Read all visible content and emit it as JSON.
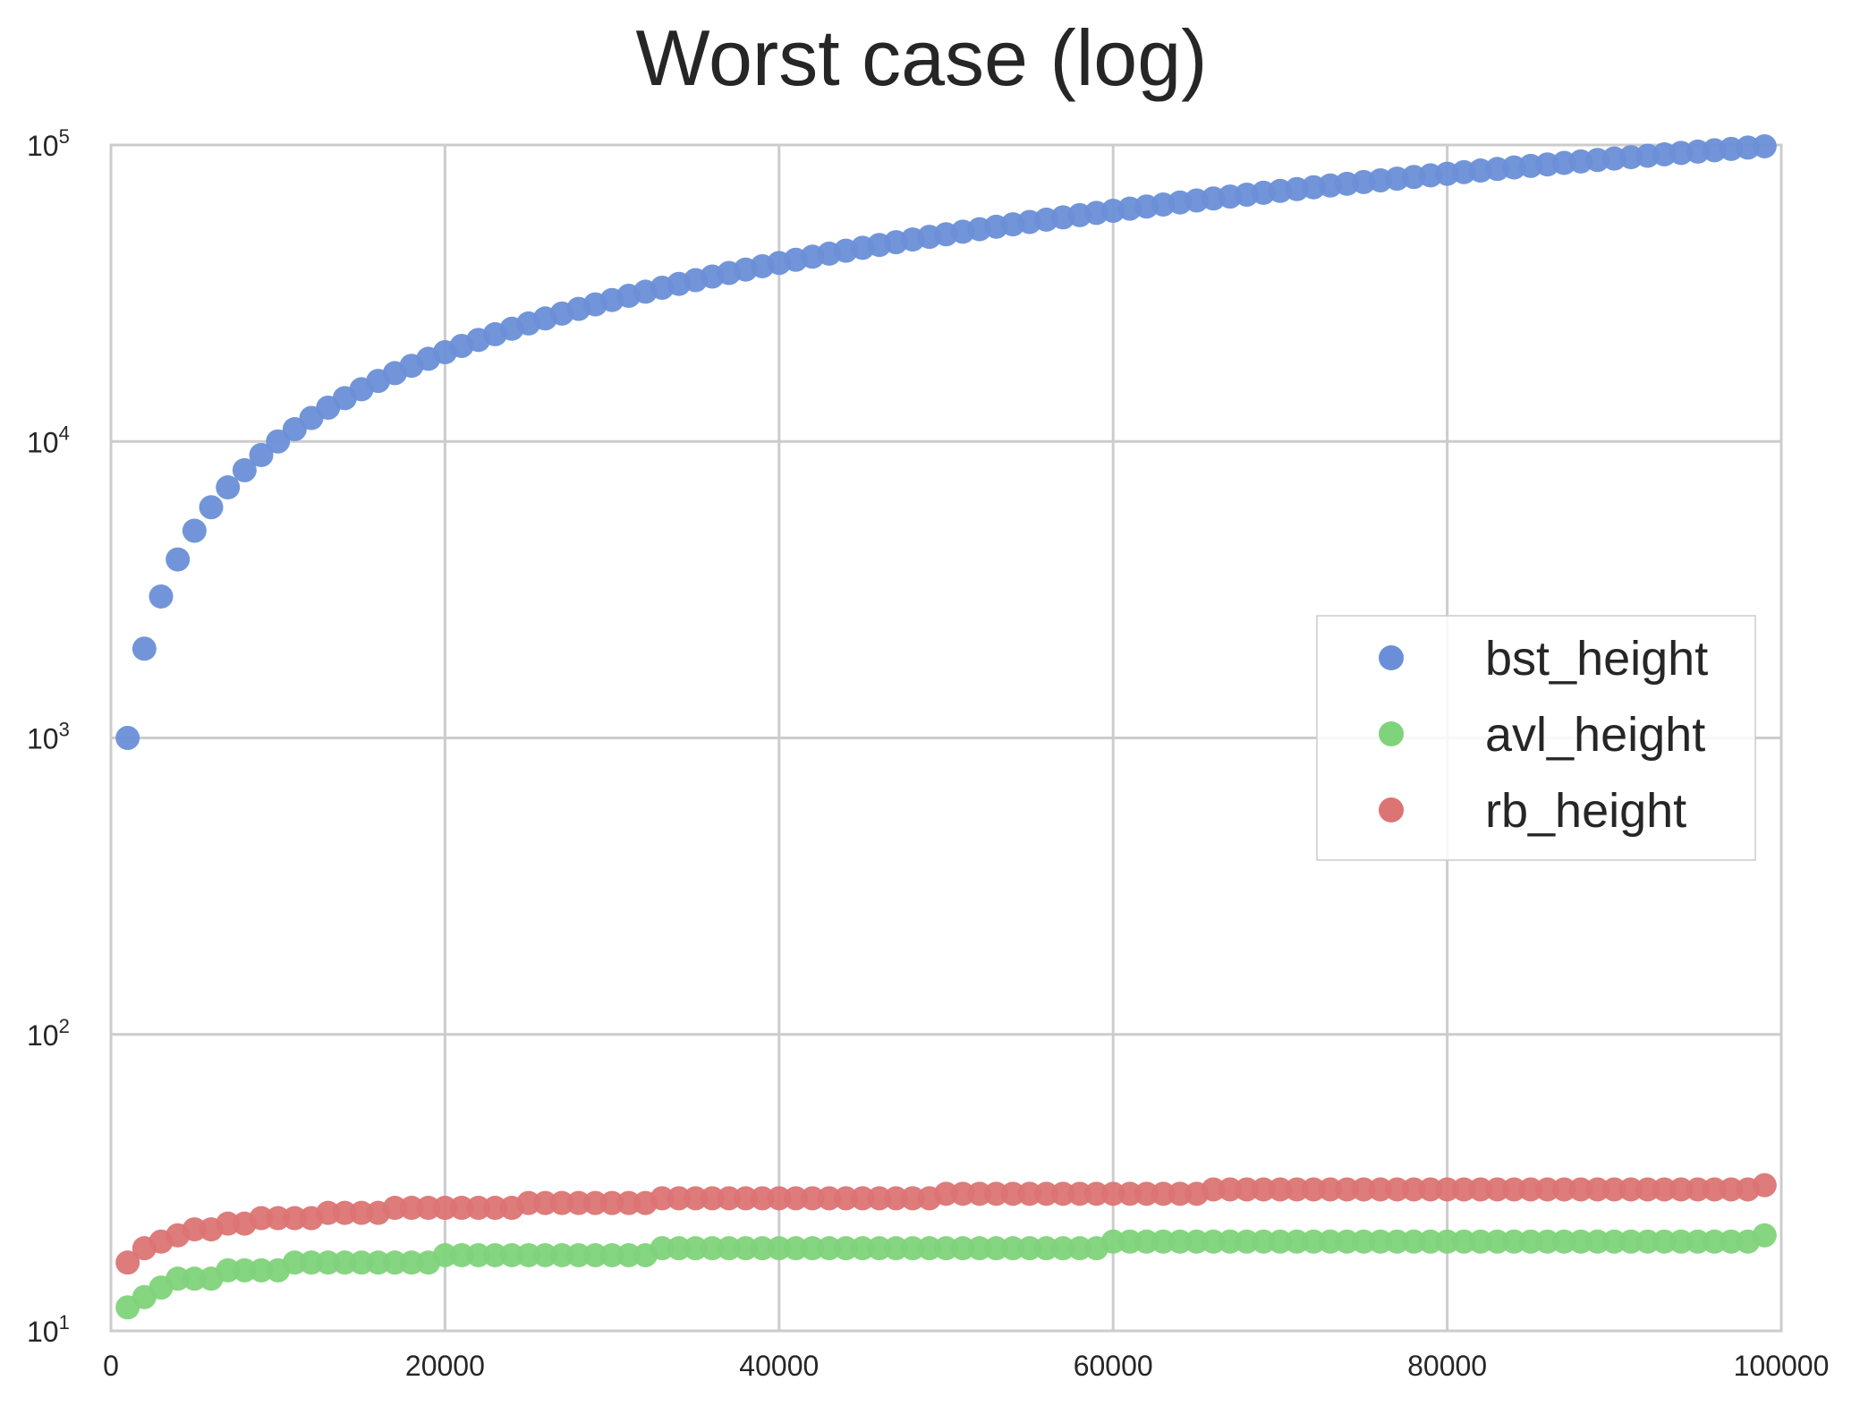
{
  "chart_data": {
    "type": "scatter",
    "title": "Worst case (log)",
    "xlabel": "",
    "ylabel": "",
    "x_scale": "linear",
    "y_scale": "log",
    "xlim": [
      0,
      100000
    ],
    "ylim": [
      10,
      100000
    ],
    "x_ticks": [
      "0",
      "20000",
      "40000",
      "60000",
      "80000",
      "100000"
    ],
    "y_ticks": [
      {
        "base": "10",
        "exp": "1"
      },
      {
        "base": "10",
        "exp": "2"
      },
      {
        "base": "10",
        "exp": "3"
      },
      {
        "base": "10",
        "exp": "4"
      },
      {
        "base": "10",
        "exp": "5"
      }
    ],
    "grid": true,
    "legend_position": "center-right",
    "x": [
      1000,
      2000,
      3000,
      4000,
      5000,
      6000,
      7000,
      8000,
      9000,
      10000,
      11000,
      12000,
      13000,
      14000,
      15000,
      16000,
      17000,
      18000,
      19000,
      20000,
      21000,
      22000,
      23000,
      24000,
      25000,
      26000,
      27000,
      28000,
      29000,
      30000,
      31000,
      32000,
      33000,
      34000,
      35000,
      36000,
      37000,
      38000,
      39000,
      40000,
      41000,
      42000,
      43000,
      44000,
      45000,
      46000,
      47000,
      48000,
      49000,
      50000,
      51000,
      52000,
      53000,
      54000,
      55000,
      56000,
      57000,
      58000,
      59000,
      60000,
      61000,
      62000,
      63000,
      64000,
      65000,
      66000,
      67000,
      68000,
      69000,
      70000,
      71000,
      72000,
      73000,
      74000,
      75000,
      76000,
      77000,
      78000,
      79000,
      80000,
      81000,
      82000,
      83000,
      84000,
      85000,
      86000,
      87000,
      88000,
      89000,
      90000,
      91000,
      92000,
      93000,
      94000,
      95000,
      96000,
      97000,
      98000,
      99000
    ],
    "series": [
      {
        "name": "bst_height",
        "color": "#6a8fd8",
        "values": [
          1000,
          2000,
          3000,
          4000,
          5000,
          6000,
          7000,
          8000,
          9000,
          10000,
          11000,
          12000,
          13000,
          14000,
          15000,
          16000,
          17000,
          18000,
          19000,
          20000,
          21000,
          22000,
          23000,
          24000,
          25000,
          26000,
          27000,
          28000,
          29000,
          30000,
          31000,
          32000,
          33000,
          34000,
          35000,
          36000,
          37000,
          38000,
          39000,
          40000,
          41000,
          42000,
          43000,
          44000,
          45000,
          46000,
          47000,
          48000,
          49000,
          50000,
          51000,
          52000,
          53000,
          54000,
          55000,
          56000,
          57000,
          58000,
          59000,
          60000,
          61000,
          62000,
          63000,
          64000,
          65000,
          66000,
          67000,
          68000,
          69000,
          70000,
          71000,
          72000,
          73000,
          74000,
          75000,
          76000,
          77000,
          78000,
          79000,
          80000,
          81000,
          82000,
          83000,
          84000,
          85000,
          86000,
          87000,
          88000,
          89000,
          90000,
          91000,
          92000,
          93000,
          94000,
          95000,
          96000,
          97000,
          98000,
          99000
        ]
      },
      {
        "name": "avl_height",
        "color": "#7fd37a",
        "values": [
          12,
          13,
          14,
          15,
          15,
          15,
          16,
          16,
          16,
          16,
          17,
          17,
          17,
          17,
          17,
          17,
          17,
          17,
          17,
          18,
          18,
          18,
          18,
          18,
          18,
          18,
          18,
          18,
          18,
          18,
          18,
          18,
          19,
          19,
          19,
          19,
          19,
          19,
          19,
          19,
          19,
          19,
          19,
          19,
          19,
          19,
          19,
          19,
          19,
          19,
          19,
          19,
          19,
          19,
          19,
          19,
          19,
          19,
          19,
          20,
          20,
          20,
          20,
          20,
          20,
          20,
          20,
          20,
          20,
          20,
          20,
          20,
          20,
          20,
          20,
          20,
          20,
          20,
          20,
          20,
          20,
          20,
          20,
          20,
          20,
          20,
          20,
          20,
          20,
          20,
          20,
          20,
          20,
          20,
          20,
          20,
          20,
          20,
          21
        ]
      },
      {
        "name": "rb_height",
        "color": "#dc7474",
        "values": [
          17,
          19,
          20,
          21,
          22,
          22,
          23,
          23,
          24,
          24,
          24,
          24,
          25,
          25,
          25,
          25,
          26,
          26,
          26,
          26,
          26,
          26,
          26,
          26,
          27,
          27,
          27,
          27,
          27,
          27,
          27,
          27,
          28,
          28,
          28,
          28,
          28,
          28,
          28,
          28,
          28,
          28,
          28,
          28,
          28,
          28,
          28,
          28,
          28,
          29,
          29,
          29,
          29,
          29,
          29,
          29,
          29,
          29,
          29,
          29,
          29,
          29,
          29,
          29,
          29,
          30,
          30,
          30,
          30,
          30,
          30,
          30,
          30,
          30,
          30,
          30,
          30,
          30,
          30,
          30,
          30,
          30,
          30,
          30,
          30,
          30,
          30,
          30,
          30,
          30,
          30,
          30,
          30,
          30,
          30,
          30,
          30,
          30,
          31
        ]
      }
    ]
  }
}
